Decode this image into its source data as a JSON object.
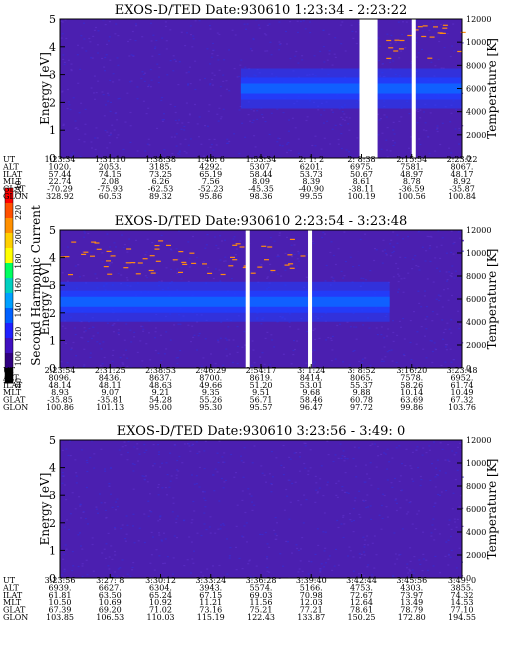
{
  "colors": {
    "background_purple": "#4b1fb0",
    "background_speckle": "#3a2bd0",
    "band_blue": "#1f3fff",
    "band_core": "#1060ff",
    "gap": "#ffffff",
    "trace_orange": "#ff8a10"
  },
  "colorbar": {
    "label": "Second Harmonic Current",
    "ticks": [
      "240",
      "220",
      "200",
      "180",
      "160",
      "140",
      "120",
      "100",
      "80"
    ],
    "ramp": [
      "#ff0000",
      "#ff5000",
      "#ff9000",
      "#ffd000",
      "#ffff00",
      "#00ff60",
      "#00d0c0",
      "#00a0ff",
      "#0060ff",
      "#2020ff",
      "#4010c0",
      "#300080",
      "#000000"
    ]
  },
  "chart_data": [
    {
      "type": "heatmap",
      "title": "EXOS-D/TED   Date:930610   1:23:34 - 2:23:22",
      "ylabel": "Energy [eV]",
      "y2label": "Temperature [K]",
      "ylim": [
        0,
        5
      ],
      "y2lim": [
        0,
        12000
      ],
      "yticks": [
        "0",
        "1",
        "2",
        "3",
        "4",
        "5"
      ],
      "y2ticks": [
        "0",
        "2000",
        "4000",
        "6000",
        "8000",
        "10000",
        "12000"
      ],
      "band": {
        "energy_center": 2.5,
        "start_fraction": 0.45,
        "end_fraction": 1.0
      },
      "gaps": [
        {
          "from": 0.745,
          "to": 0.79
        },
        {
          "from": 0.875,
          "to": 0.885
        }
      ],
      "ephemeris_labels": [
        "UT",
        "ALT",
        "ILAT",
        "MLT",
        "GLAT",
        "GLON"
      ],
      "ephemeris_columns": [
        [
          "1:23:34",
          "1020.",
          "57.44",
          "22.74",
          "-70.29",
          "328.92"
        ],
        [
          "1:31:10",
          "2053.",
          "74.15",
          "2.08",
          "-75.93",
          "60.53"
        ],
        [
          "1:38:38",
          "3185.",
          "73.25",
          "6.26",
          "-62.53",
          "89.32"
        ],
        [
          "1:46: 6",
          "4292.",
          "65.19",
          "7.56",
          "-52.23",
          "95.86"
        ],
        [
          "1:53:34",
          "5307.",
          "58.44",
          "8.09",
          "-45.35",
          "98.36"
        ],
        [
          "2: 1: 2",
          "6201.",
          "53.73",
          "8.39",
          "-40.90",
          "99.55"
        ],
        [
          "2: 8:38",
          "6975.",
          "50.67",
          "8.61",
          "-38.11",
          "100.19"
        ],
        [
          "2:15:54",
          "7581.",
          "48.97",
          "8.78",
          "-36.59",
          "100.56"
        ],
        [
          "2:23:22",
          "8067.",
          "48.17",
          "8.92",
          "-35.87",
          "100.84"
        ]
      ]
    },
    {
      "type": "heatmap",
      "title": "EXOS-D/TED   Date:930610   2:23:54 - 3:23:48",
      "ylabel": "Energy [eV]",
      "y2label": "Temperature [K]",
      "ylim": [
        0,
        5
      ],
      "y2lim": [
        0,
        12000
      ],
      "yticks": [
        "0",
        "1",
        "2",
        "3",
        "4",
        "5"
      ],
      "y2ticks": [
        "0",
        "2000",
        "4000",
        "6000",
        "8000",
        "10000",
        "12000"
      ],
      "band": {
        "energy_center": 2.4,
        "start_fraction": 0.0,
        "end_fraction": 0.82
      },
      "gaps": [
        {
          "from": 0.462,
          "to": 0.472
        },
        {
          "from": 0.617,
          "to": 0.627
        }
      ],
      "ephemeris_labels": [
        "UT",
        "ALT",
        "ILAT",
        "MLT",
        "GLAT",
        "GLON"
      ],
      "ephemeris_columns": [
        [
          "2:23:54",
          "8096.",
          "48.14",
          "8.93",
          "-35.85",
          "100.86"
        ],
        [
          "2:31:25",
          "8436.",
          "48.11",
          "9.07",
          "-35.81",
          "101.13"
        ],
        [
          "2:38:53",
          "8637.",
          "48.63",
          "9.21",
          "54.28",
          "95.00"
        ],
        [
          "2:46:29",
          "8700.",
          "49.66",
          "9.35",
          "55.26",
          "95.30"
        ],
        [
          "2:54:17",
          "8619.",
          "51.20",
          "9.51",
          "56.71",
          "95.57"
        ],
        [
          "3: 1:24",
          "8414.",
          "53.01",
          "9.68",
          "58.46",
          "96.47"
        ],
        [
          "3: 8:52",
          "8065.",
          "55.37",
          "9.88",
          "60.78",
          "97.72"
        ],
        [
          "3:16:20",
          "7578.",
          "58.26",
          "10.14",
          "63.69",
          "99.86"
        ],
        [
          "3:23:48",
          "6952.",
          "61.74",
          "10.49",
          "67.32",
          "103.76"
        ]
      ]
    },
    {
      "type": "heatmap",
      "title": "EXOS-D/TED   Date:930610   3:23:56 - 3:49: 0",
      "ylabel": "Energy [eV]",
      "y2label": "Temperature [K]",
      "ylim": [
        0,
        5
      ],
      "y2lim": [
        0,
        12000
      ],
      "yticks": [
        "0",
        "1",
        "2",
        "3",
        "4",
        "5"
      ],
      "y2ticks": [
        "0",
        "2000",
        "4000",
        "6000",
        "8000",
        "10000",
        "12000"
      ],
      "band": null,
      "gaps": [],
      "ephemeris_labels": [
        "UT",
        "ALT",
        "ILAT",
        "MLT",
        "GLAT",
        "GLON"
      ],
      "ephemeris_columns": [
        [
          "3:23:56",
          "6939.",
          "61.81",
          "10.50",
          "67.39",
          "103.85"
        ],
        [
          "3:27: 8",
          "6627.",
          "63.50",
          "10.69",
          "69.20",
          "106.53"
        ],
        [
          "3:30:12",
          "6304.",
          "65.24",
          "10.92",
          "71.02",
          "110.03"
        ],
        [
          "3:33:24",
          "3943.",
          "67.15",
          "11.21",
          "73.16",
          "115.19"
        ],
        [
          "3:36:28",
          "5574.",
          "69.03",
          "11.56",
          "75.21",
          "122.43"
        ],
        [
          "3:39:40",
          "5166.",
          "70.98",
          "12.03",
          "77.21",
          "133.87"
        ],
        [
          "3:42:44",
          "4753.",
          "72.67",
          "12.64",
          "78.61",
          "150.25"
        ],
        [
          "3:45:56",
          "4303.",
          "73.97",
          "13.49",
          "78.79",
          "172.80"
        ],
        [
          "3:49: 0",
          "3855.",
          "74.32",
          "14.53",
          "77.10",
          "194.55"
        ]
      ]
    }
  ]
}
